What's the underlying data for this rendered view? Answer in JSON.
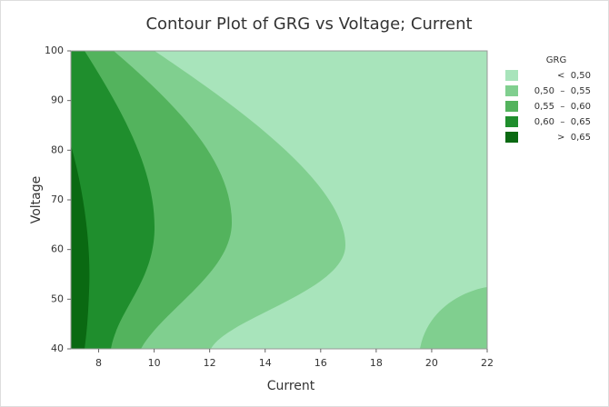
{
  "chart_data": {
    "type": "contour",
    "title": "Contour Plot of GRG vs Voltage; Current",
    "x_label": "Current",
    "y_label": "Voltage",
    "xlim": [
      7,
      22
    ],
    "xticks": [
      8,
      10,
      12,
      14,
      16,
      18,
      20,
      22
    ],
    "ylim": [
      40,
      100
    ],
    "yticks": [
      40,
      50,
      60,
      70,
      80,
      90,
      100
    ],
    "legend_title": "GRG",
    "legend_position": "right",
    "levels": [
      {
        "label": "<  0,50",
        "color": "#a8e4bb"
      },
      {
        "label": "0,50  –  0,55",
        "color": "#80cf8f"
      },
      {
        "label": "0,55  –  0,60",
        "color": "#53b35d"
      },
      {
        "label": "0,60  –  0,65",
        "color": "#1f8e2d"
      },
      {
        "label": ">  0,65",
        "color": "#0a6912"
      }
    ]
  }
}
